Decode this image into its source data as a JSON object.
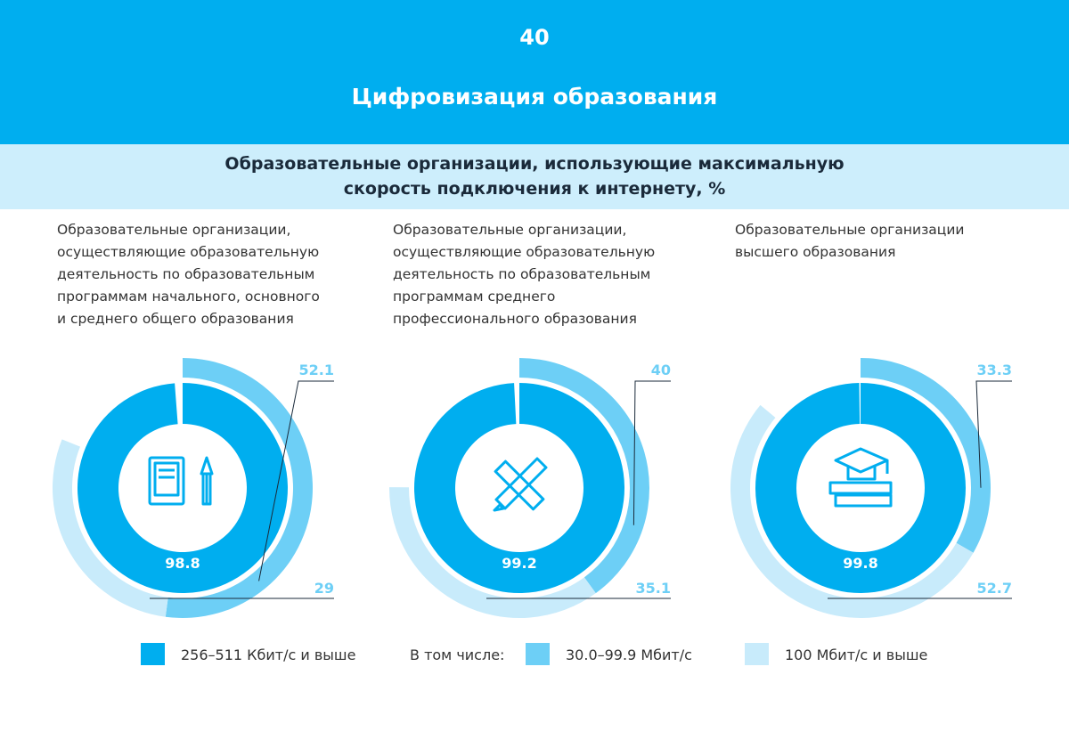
{
  "header": {
    "page_number": "40",
    "title": "Цифровизация образования"
  },
  "subtitle": "Образовательные организации, использующие максимальную\nскорость подключения к интернету, %",
  "legend": {
    "note": "В том числе:",
    "series": [
      {
        "name": "256–511 Кбит/с и выше",
        "color": "#00aeef"
      },
      {
        "name": "30.0–99.9 Мбит/с",
        "color": "#6dcff6"
      },
      {
        "name": "100 Мбит/с и выше",
        "color": "#c8ebfb"
      }
    ]
  },
  "chart_data": [
    {
      "type": "donut",
      "title": "Образовательные организации,\nосуществляющие образовательную\nдеятельность по образовательным\nпрограммам начального, основного\nи среднего общего образования",
      "values": [
        98.8,
        52.1,
        29.0
      ]
    },
    {
      "type": "donut",
      "title": "Образовательные организации,\nосуществляющие образовательную\nдеятельность по образовательным\nпрограммам среднего\nпрофессионального образования",
      "values": [
        99.2,
        40.0,
        35.1
      ]
    },
    {
      "type": "donut",
      "title": "Образовательные организации\nвысшего образования",
      "values": [
        99.8,
        33.3,
        52.7
      ]
    }
  ]
}
